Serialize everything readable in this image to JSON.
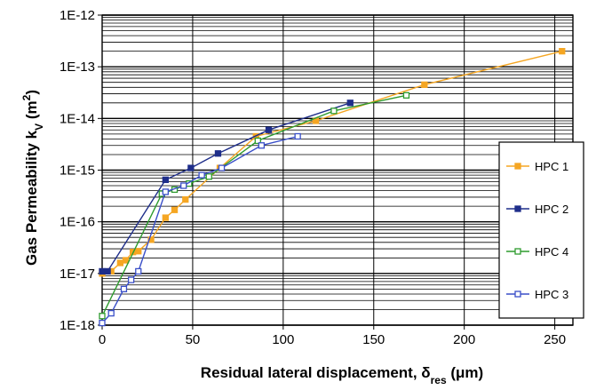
{
  "chart_data": {
    "type": "line",
    "xlabel": {
      "main": "Residual lateral displacement, δ",
      "sub": "res",
      "unit": " (μm)"
    },
    "ylabel": {
      "main": "Gas Permeability k",
      "sub": "V",
      "unit": " (m",
      "sup": "2",
      "close": ")"
    },
    "xlim": [
      0,
      260
    ],
    "ylim": [
      1e-18,
      1e-12
    ],
    "yscale": "log",
    "grid": true,
    "legend_position": "right",
    "x_ticks": [
      {
        "value": 0,
        "label": "0"
      },
      {
        "value": 50,
        "label": "50"
      },
      {
        "value": 100,
        "label": "100"
      },
      {
        "value": 150,
        "label": "150"
      },
      {
        "value": 200,
        "label": "200"
      },
      {
        "value": 250,
        "label": "250"
      }
    ],
    "y_ticks": [
      {
        "value": 1e-18,
        "label": "1E-18"
      },
      {
        "value": 1e-17,
        "label": "1E-17"
      },
      {
        "value": 1e-16,
        "label": "1E-16"
      },
      {
        "value": 1e-15,
        "label": "1E-15"
      },
      {
        "value": 1e-14,
        "label": "1E-14"
      },
      {
        "value": 1e-13,
        "label": "1E-13"
      },
      {
        "value": 1e-12,
        "label": "1E-12"
      }
    ],
    "series": [
      {
        "name": "HPC 1",
        "color": "#f5a623",
        "marker": "filled-square",
        "points": [
          [
            0,
            1e-17
          ],
          [
            5,
            1.1e-17
          ],
          [
            10,
            1.6e-17
          ],
          [
            13,
            1.8e-17
          ],
          [
            17,
            2.6e-17
          ],
          [
            20,
            2.7e-17
          ],
          [
            27,
            4.5e-17
          ],
          [
            35,
            1.2e-16
          ],
          [
            40,
            1.7e-16
          ],
          [
            46,
            2.7e-16
          ],
          [
            65,
            1.1e-15
          ],
          [
            85,
            4.5e-15
          ],
          [
            118,
            9e-15
          ],
          [
            178,
            4.5e-14
          ],
          [
            254,
            2e-13
          ]
        ]
      },
      {
        "name": "HPC 2",
        "color": "#1f2e8a",
        "marker": "filled-square",
        "points": [
          [
            0,
            1.1e-17
          ],
          [
            3,
            1.1e-17
          ],
          [
            35,
            6.5e-16
          ],
          [
            49,
            1.1e-15
          ],
          [
            64,
            2.1e-15
          ],
          [
            92,
            6e-15
          ],
          [
            137,
            2e-14
          ]
        ]
      },
      {
        "name": "HPC 4",
        "color": "#2e9b2e",
        "marker": "open-square",
        "points": [
          [
            0,
            1.5e-18
          ],
          [
            33,
            3.5e-16
          ],
          [
            40,
            4.2e-16
          ],
          [
            48,
            5.5e-16
          ],
          [
            59,
            7.5e-16
          ],
          [
            86,
            3.7e-15
          ],
          [
            128,
            1.4e-14
          ],
          [
            168,
            2.8e-14
          ]
        ]
      },
      {
        "name": "HPC 3",
        "color": "#3a4fc8",
        "marker": "open-square",
        "points": [
          [
            0,
            1.1e-18
          ],
          [
            5,
            1.7e-18
          ],
          [
            12,
            5e-18
          ],
          [
            16,
            7.5e-18
          ],
          [
            20,
            1.1e-17
          ],
          [
            35,
            3.8e-16
          ],
          [
            45,
            5e-16
          ],
          [
            55,
            8e-16
          ],
          [
            66,
            1.1e-15
          ],
          [
            88,
            3e-15
          ],
          [
            108,
            4.5e-15
          ]
        ]
      }
    ]
  }
}
